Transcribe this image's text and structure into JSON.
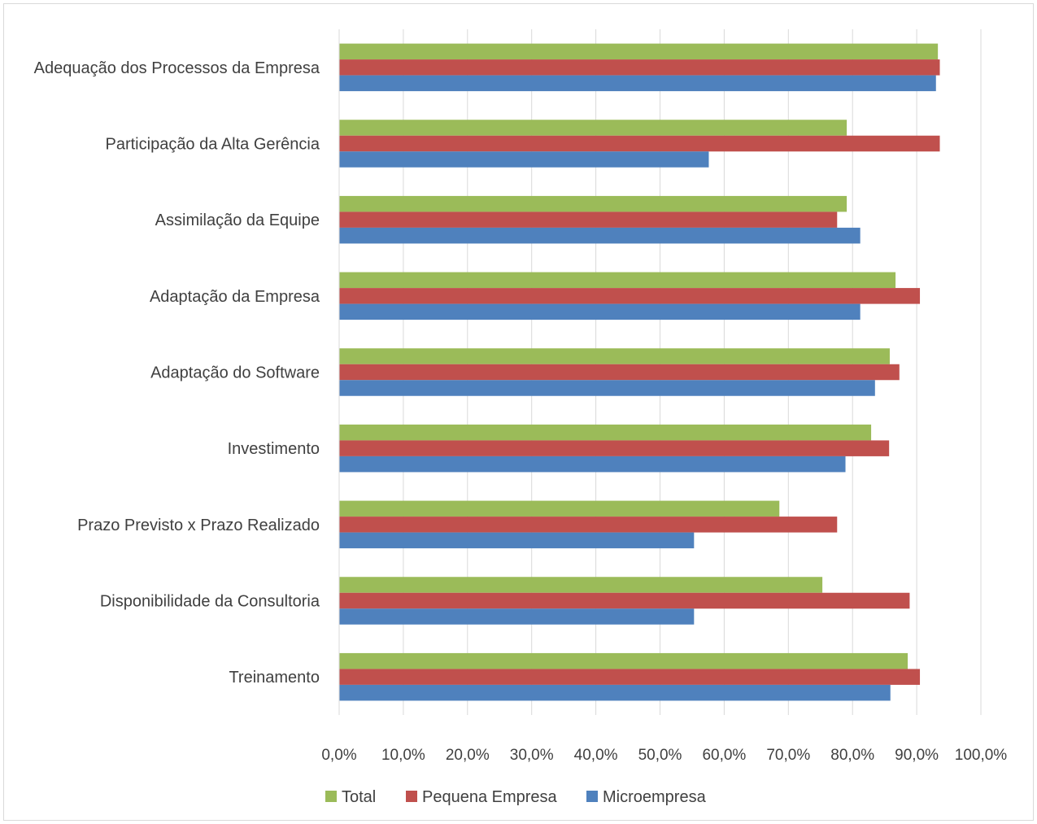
{
  "chart_data": {
    "type": "bar",
    "orientation": "horizontal",
    "title": "",
    "xlabel": "",
    "ylabel": "",
    "xlim": [
      0,
      100
    ],
    "x_ticks": [
      "0,0%",
      "10,0%",
      "20,0%",
      "30,0%",
      "40,0%",
      "50,0%",
      "60,0%",
      "70,0%",
      "80,0%",
      "90,0%",
      "100,0%"
    ],
    "grid": "vertical",
    "legend_position": "bottom",
    "categories": [
      "Adequação dos Processos da Empresa",
      "Participação da Alta Gerência",
      "Assimilação da Equipe",
      "Adaptação da Empresa",
      "Adaptação do Software",
      "Investimento",
      "Prazo Previsto x Prazo Realizado",
      "Disponibilidade da Consultoria",
      "Treinamento"
    ],
    "series": [
      {
        "name": "Total",
        "color": "#9bbb59",
        "values": [
          93.3,
          79.1,
          79.1,
          86.7,
          85.8,
          82.9,
          68.6,
          75.3,
          88.6
        ]
      },
      {
        "name": "Pequena Empresa",
        "color": "#c0504d",
        "values": [
          93.6,
          93.6,
          77.6,
          90.5,
          87.3,
          85.7,
          77.6,
          88.9,
          90.5
        ]
      },
      {
        "name": "Microempresa",
        "color": "#4f81bd",
        "values": [
          93.0,
          57.6,
          81.2,
          81.2,
          83.5,
          78.9,
          55.3,
          55.3,
          85.9
        ]
      }
    ]
  }
}
